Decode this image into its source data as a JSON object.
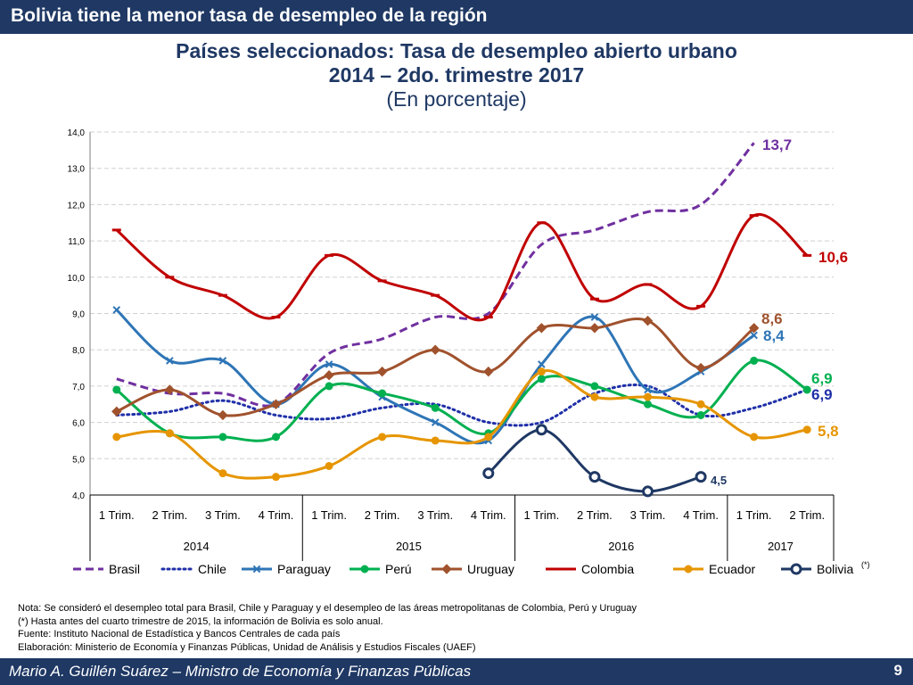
{
  "header": {
    "banner": "Bolivia tiene la menor tasa de desempleo de la región"
  },
  "footer": {
    "author": "Mario A. Guillén Suárez – Ministro de Economía y Finanzas Públicas",
    "page": "9"
  },
  "notes": [
    "Nota: Se consideró el desempleo total para Brasil, Chile y Paraguay y el desempleo de las áreas metropolitanas de Colombia, Perú y Uruguay",
    "(*) Hasta antes del cuarto trimestre de 2015, la información de Bolivia es solo anual.",
    "Fuente: Instituto Nacional de Estadística y Bancos Centrales de cada país",
    "Elaboración: Ministerio de Economía y Finanzas Públicas, Unidad de Análisis y Estudios Fiscales (UAEF)"
  ],
  "chart_data": {
    "type": "line",
    "title": "Países seleccionados: Tasa de desempleo abierto urbano",
    "title_line2": "2014 – 2do. trimestre 2017",
    "subtitle": "(En porcentaje)",
    "ylim": [
      4,
      14
    ],
    "yticks": [
      "4,0",
      "5,0",
      "6,0",
      "7,0",
      "8,0",
      "9,0",
      "10,0",
      "11,0",
      "12,0",
      "13,0",
      "14,0"
    ],
    "categories": [
      "1 Trim.",
      "2 Trim.",
      "3 Trim.",
      "4 Trim.",
      "1 Trim.",
      "2 Trim.",
      "3 Trim.",
      "4 Trim.",
      "1 Trim.",
      "2 Trim.",
      "3 Trim.",
      "4 Trim.",
      "1 Trim.",
      "2 Trim."
    ],
    "years": [
      {
        "label": "2014",
        "count": 4
      },
      {
        "label": "2015",
        "count": 4
      },
      {
        "label": "2016",
        "count": 4
      },
      {
        "label": "2017",
        "count": 2
      }
    ],
    "series": [
      {
        "name": "Brasil",
        "color": "#7030a0",
        "dash": "dashed",
        "marker": "none",
        "values": [
          7.2,
          6.8,
          6.8,
          6.5,
          7.9,
          8.3,
          8.9,
          9.0,
          10.9,
          11.3,
          11.8,
          12.0,
          13.7,
          null
        ],
        "end_label": "13,7"
      },
      {
        "name": "Chile",
        "color": "#1f2fa8",
        "dash": "dotted",
        "marker": "none",
        "values": [
          6.2,
          6.3,
          6.6,
          6.2,
          6.1,
          6.4,
          6.5,
          6.0,
          6.0,
          6.8,
          7.0,
          6.2,
          6.4,
          6.9
        ],
        "end_label": "6,9"
      },
      {
        "name": "Paraguay",
        "color": "#2e75b6",
        "dash": "solid",
        "marker": "x",
        "values": [
          9.1,
          7.7,
          7.7,
          6.5,
          7.6,
          6.7,
          6.0,
          5.5,
          7.6,
          8.9,
          6.9,
          7.4,
          8.4,
          null
        ],
        "end_label": "8,4"
      },
      {
        "name": "Perú",
        "color": "#00b050",
        "dash": "solid",
        "marker": "circle",
        "values": [
          6.9,
          5.7,
          5.6,
          5.6,
          7.0,
          6.8,
          6.4,
          5.7,
          7.2,
          7.0,
          6.5,
          6.2,
          7.7,
          6.9
        ],
        "end_label": "6,9"
      },
      {
        "name": "Uruguay",
        "color": "#a0522d",
        "dash": "solid",
        "marker": "diamond",
        "values": [
          6.3,
          6.9,
          6.2,
          6.5,
          7.3,
          7.4,
          8.0,
          7.4,
          8.6,
          8.6,
          8.8,
          7.5,
          8.6,
          null
        ],
        "end_label": "8,6"
      },
      {
        "name": "Colombia",
        "color": "#c00000",
        "dash": "solid",
        "marker": "dash",
        "values": [
          11.3,
          10.0,
          9.5,
          8.9,
          10.6,
          9.9,
          9.5,
          8.9,
          11.5,
          9.4,
          9.8,
          9.2,
          11.7,
          10.6
        ],
        "end_label": "10,6"
      },
      {
        "name": "Ecuador",
        "color": "#e69500",
        "dash": "solid",
        "marker": "circle",
        "values": [
          5.6,
          5.7,
          4.6,
          4.5,
          4.8,
          5.6,
          5.5,
          5.6,
          7.4,
          6.7,
          6.7,
          6.5,
          5.6,
          5.8
        ],
        "end_label": "5,8"
      },
      {
        "name": "Bolivia",
        "legend_suffix": "(*)",
        "color": "#1f3864",
        "dash": "solid",
        "marker": "ring",
        "values": [
          null,
          null,
          null,
          null,
          null,
          null,
          null,
          4.6,
          5.8,
          4.5,
          4.1,
          4.5,
          null,
          null
        ],
        "end_label": "4,5"
      }
    ]
  }
}
